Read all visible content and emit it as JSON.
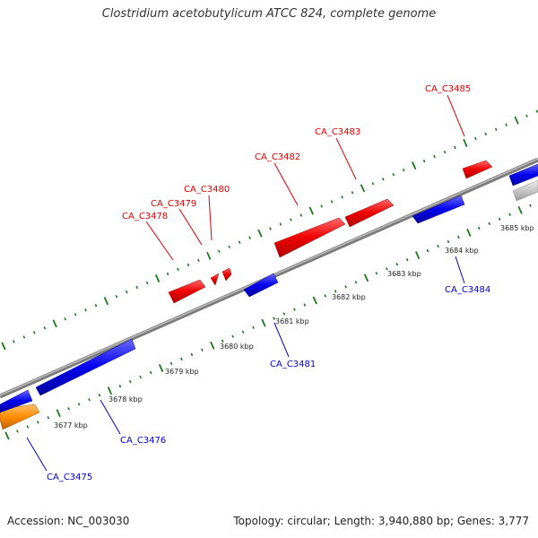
{
  "title": "Clostridium acetobutylicum ATCC 824, complete genome",
  "footer": {
    "accession": "Accession: NC_003030",
    "info": "Topology: circular; Length: 3,940,880 bp; Genes: 3,777"
  },
  "colors": {
    "forward": "#ff0000",
    "reverse": "#0000ee",
    "other": "#ff8c00",
    "unknown": "#c8c8c8",
    "ruler": "#1a7a1a",
    "backbone": "#8a8a8a",
    "label_forward": "#dd0000",
    "label_reverse": "#0000cc"
  },
  "scale_labels": [
    "3677 kbp",
    "3678 kbp",
    "3679 kbp",
    "3680 kbp",
    "3681 kbp",
    "3682 kbp",
    "3683 kbp",
    "3684 kbp",
    "3685 kbp"
  ],
  "genes": [
    {
      "id": "CA_C3475",
      "strand": "other"
    },
    {
      "id": "CA_C3476",
      "strand": "reverse"
    },
    {
      "id": "CA_C3478",
      "strand": "forward"
    },
    {
      "id": "CA_C3479",
      "strand": "forward"
    },
    {
      "id": "CA_C3480",
      "strand": "forward"
    },
    {
      "id": "CA_C3481",
      "strand": "reverse"
    },
    {
      "id": "CA_C3482",
      "strand": "forward"
    },
    {
      "id": "CA_C3483",
      "strand": "forward"
    },
    {
      "id": "CA_C3484",
      "strand": "reverse"
    },
    {
      "id": "CA_C3485",
      "strand": "forward"
    }
  ]
}
